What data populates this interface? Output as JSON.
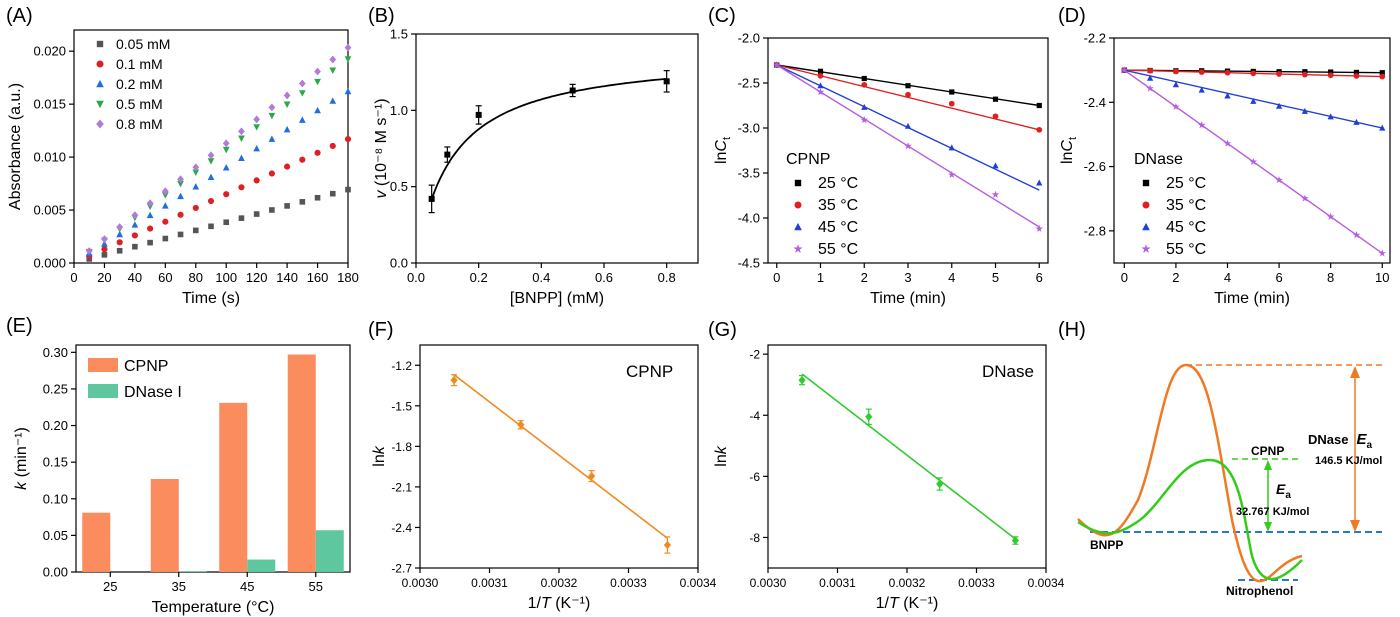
{
  "chart_data": [
    {
      "id": "A",
      "panel_label": "(A)",
      "type": "scatter",
      "xlabel": "Time (s)",
      "ylabel": "Absorbance (a.u.)",
      "xlim": [
        0,
        180
      ],
      "ylim": [
        0,
        0.022
      ],
      "xticks": [
        0,
        20,
        40,
        60,
        80,
        100,
        120,
        140,
        160,
        180
      ],
      "yticks": [
        0.0,
        0.005,
        0.01,
        0.015,
        0.02
      ],
      "ytick_labels": [
        "0.000",
        "0.005",
        "0.010",
        "0.015",
        "0.020"
      ],
      "legend_position": "top-left",
      "x": [
        0,
        10,
        20,
        30,
        40,
        50,
        60,
        70,
        80,
        90,
        100,
        110,
        120,
        130,
        140,
        150,
        160,
        170,
        180
      ],
      "series": [
        {
          "name": "0.05 mM",
          "color": "#555555",
          "marker": "square",
          "slope": 3.85e-05
        },
        {
          "name": "0.1 mM",
          "color": "#e02020",
          "marker": "circle",
          "slope": 6.5e-05
        },
        {
          "name": "0.2 mM",
          "color": "#1f6fe0",
          "marker": "triangle-up",
          "slope": 9e-05
        },
        {
          "name": "0.5 mM",
          "color": "#2aa84a",
          "marker": "triangle-down",
          "slope": 0.000107
        },
        {
          "name": "0.8 mM",
          "color": "#b27ad8",
          "marker": "diamond",
          "slope": 0.000113
        }
      ]
    },
    {
      "id": "B",
      "panel_label": "(B)",
      "type": "scatter",
      "xlabel": "[BNPP] (mM)",
      "ylabel": "v (10⁻⁸ M s⁻¹)",
      "xlim": [
        0,
        0.9
      ],
      "ylim": [
        0,
        1.5
      ],
      "xticks": [
        0.0,
        0.2,
        0.4,
        0.6,
        0.8
      ],
      "xtick_labels": [
        "0.0",
        "0.2",
        "0.4",
        "0.6",
        "0.8"
      ],
      "yticks": [
        0.0,
        0.5,
        1.0,
        1.5
      ],
      "ytick_labels": [
        "0.0",
        "0.5",
        "1.0",
        "1.5"
      ],
      "points": {
        "x": [
          0.05,
          0.1,
          0.2,
          0.5,
          0.8
        ],
        "y": [
          0.42,
          0.71,
          0.97,
          1.13,
          1.19
        ],
        "err": [
          0.09,
          0.05,
          0.06,
          0.04,
          0.07
        ]
      },
      "fit": {
        "type": "michaelis-menten",
        "vmax": 1.38,
        "km": 0.115
      },
      "color": "#000000"
    },
    {
      "id": "C",
      "panel_label": "(C)",
      "type": "line",
      "xlabel": "Time (min)",
      "ylabel": "lnCt",
      "xlim": [
        -0.2,
        6.2
      ],
      "ylim": [
        -4.5,
        -2.0
      ],
      "xticks": [
        0,
        1,
        2,
        3,
        4,
        5,
        6
      ],
      "yticks": [
        -4.5,
        -4.0,
        -3.5,
        -3.0,
        -2.5,
        -2.0
      ],
      "ytick_labels": [
        "-4.5",
        "-4.0",
        "-3.5",
        "-3.0",
        "-2.5",
        "-2.0"
      ],
      "legend_title": "CPNP",
      "legend_position": "center-left",
      "x": [
        0,
        1,
        2,
        3,
        4,
        5,
        6
      ],
      "series": [
        {
          "name": "25 °C",
          "color": "#000000",
          "marker": "square",
          "y": [
            -2.3,
            -2.37,
            -2.45,
            -2.53,
            -2.6,
            -2.68,
            -2.75
          ],
          "fit": [
            -2.3,
            -2.75
          ]
        },
        {
          "name": "35 °C",
          "color": "#e02020",
          "marker": "circle",
          "y": [
            -2.3,
            -2.42,
            -2.52,
            -2.63,
            -2.73,
            -2.87,
            -3.02
          ],
          "fit": [
            -2.3,
            -3.02
          ]
        },
        {
          "name": "45 °C",
          "color": "#1f3fd8",
          "marker": "triangle-up",
          "y": [
            -2.3,
            -2.53,
            -2.77,
            -2.98,
            -3.22,
            -3.42,
            -3.61
          ],
          "fit": [
            -2.3,
            -3.69
          ]
        },
        {
          "name": "55 °C",
          "color": "#b65de0",
          "marker": "star",
          "y": [
            -2.3,
            -2.6,
            -2.91,
            -3.2,
            -3.52,
            -3.74,
            -4.12
          ],
          "fit": [
            -2.3,
            -4.1
          ]
        }
      ]
    },
    {
      "id": "D",
      "panel_label": "(D)",
      "type": "line",
      "xlabel": "Time (min)",
      "ylabel": "lnCt",
      "xlim": [
        -0.4,
        10.3
      ],
      "ylim": [
        -2.9,
        -2.2
      ],
      "xticks": [
        0,
        2,
        4,
        6,
        8,
        10
      ],
      "yticks": [
        -2.8,
        -2.6,
        -2.4,
        -2.2
      ],
      "ytick_labels": [
        "-2.8",
        "-2.6",
        "-2.4",
        "-2.2"
      ],
      "legend_title": "DNase",
      "legend_position": "center-left",
      "x": [
        0,
        1,
        2,
        3,
        4,
        5,
        6,
        7,
        8,
        9,
        10
      ],
      "series": [
        {
          "name": "25 °C",
          "color": "#000000",
          "marker": "square",
          "y": [
            -2.3,
            -2.301,
            -2.302,
            -2.302,
            -2.303,
            -2.304,
            -2.305,
            -2.305,
            -2.306,
            -2.307,
            -2.308
          ],
          "fit": [
            -2.3,
            -2.308
          ]
        },
        {
          "name": "35 °C",
          "color": "#e02020",
          "marker": "circle",
          "y": [
            -2.3,
            -2.302,
            -2.304,
            -2.306,
            -2.308,
            -2.31,
            -2.312,
            -2.314,
            -2.316,
            -2.318,
            -2.32
          ],
          "fit": [
            -2.3,
            -2.32
          ]
        },
        {
          "name": "45 °C",
          "color": "#1f3fd8",
          "marker": "triangle-up",
          "y": [
            -2.3,
            -2.325,
            -2.345,
            -2.362,
            -2.38,
            -2.397,
            -2.412,
            -2.428,
            -2.445,
            -2.462,
            -2.48
          ],
          "fit": [
            -2.3,
            -2.48
          ]
        },
        {
          "name": "55 °C",
          "color": "#b65de0",
          "marker": "star",
          "y": [
            -2.3,
            -2.357,
            -2.414,
            -2.471,
            -2.528,
            -2.585,
            -2.642,
            -2.699,
            -2.756,
            -2.813,
            -2.87
          ],
          "fit": [
            -2.3,
            -2.87
          ]
        }
      ]
    },
    {
      "id": "E",
      "panel_label": "(E)",
      "type": "bar",
      "xlabel": "Temperature (°C)",
      "ylabel": "k (min⁻¹)",
      "categories": [
        "25",
        "35",
        "45",
        "55"
      ],
      "ylim": [
        0,
        0.31
      ],
      "yticks": [
        0.0,
        0.05,
        0.1,
        0.15,
        0.2,
        0.25,
        0.3
      ],
      "ytick_labels": [
        "0.00",
        "0.05",
        "0.10",
        "0.15",
        "0.20",
        "0.25",
        "0.30"
      ],
      "legend_position": "top-left",
      "series": [
        {
          "name": "CPNP",
          "color": "#fb8c5e",
          "values": [
            0.081,
            0.127,
            0.231,
            0.297
          ]
        },
        {
          "name": "DNase I",
          "color": "#5ec7a0",
          "values": [
            0.0,
            0.001,
            0.017,
            0.057
          ]
        }
      ]
    },
    {
      "id": "F",
      "panel_label": "(F)",
      "type": "scatter",
      "xlabel": "1/T (K⁻¹)",
      "ylabel": "lnk",
      "annotation": "CPNP",
      "annotation_color": "#f08a1f",
      "xlim": [
        0.003,
        0.0034
      ],
      "ylim": [
        -2.7,
        -1.05
      ],
      "xticks": [
        0.003,
        0.0031,
        0.0032,
        0.0033,
        0.0034
      ],
      "xtick_labels": [
        "0.0030",
        "0.0031",
        "0.0032",
        "0.0033",
        "0.0034"
      ],
      "yticks": [
        -2.7,
        -2.4,
        -2.1,
        -1.8,
        -1.5,
        -1.2
      ],
      "ytick_labels": [
        "-2.7",
        "-2.4",
        "-2.1",
        "-1.8",
        "-1.5",
        "-1.2"
      ],
      "points": {
        "x": [
          0.003049,
          0.003145,
          0.003247,
          0.003356
        ],
        "y": [
          -1.31,
          -1.64,
          -2.02,
          -2.53
        ],
        "err": [
          0.04,
          0.03,
          0.04,
          0.06
        ]
      },
      "fit": {
        "x": [
          0.003049,
          0.003356
        ],
        "y": [
          -1.27,
          -2.48
        ]
      },
      "color": "#f08a1f"
    },
    {
      "id": "G",
      "panel_label": "(G)",
      "type": "scatter",
      "xlabel": "1/T (K⁻¹)",
      "ylabel": "lnk",
      "annotation": "DNase",
      "annotation_color": "#2ecc2e",
      "xlim": [
        0.003,
        0.0034
      ],
      "ylim": [
        -9,
        -1.7
      ],
      "xticks": [
        0.003,
        0.0031,
        0.0032,
        0.0033,
        0.0034
      ],
      "xtick_labels": [
        "0.0030",
        "0.0031",
        "0.0032",
        "0.0033",
        "0.0034"
      ],
      "yticks": [
        -8,
        -6,
        -4,
        -2
      ],
      "ytick_labels": [
        "-8",
        "-6",
        "-4",
        "-2"
      ],
      "points": {
        "x": [
          0.003049,
          0.003145,
          0.003247,
          0.003356
        ],
        "y": [
          -2.85,
          -4.05,
          -6.25,
          -8.1
        ],
        "err": [
          0.15,
          0.25,
          0.2,
          0.12
        ]
      },
      "fit": {
        "x": [
          0.003049,
          0.003356
        ],
        "y": [
          -2.65,
          -8.05
        ]
      },
      "color": "#2ecc2e"
    },
    {
      "id": "H",
      "panel_label": "(H)",
      "type": "diagram",
      "labels": {
        "start": "BNPP",
        "end": "Nitrophenol",
        "dnase": "DNase",
        "dnase_ea_symbol": "E",
        "ea_subscript": "a",
        "dnase_value": "146.5 KJ/mol",
        "cpnp": "CPNP",
        "cpnp_ea_symbol": "E",
        "cpnp_value": "32.767 KJ/mol"
      },
      "colors": {
        "dnase": "#f07a22",
        "cpnp": "#33cc1a",
        "baseline": "#2878c8"
      }
    }
  ]
}
